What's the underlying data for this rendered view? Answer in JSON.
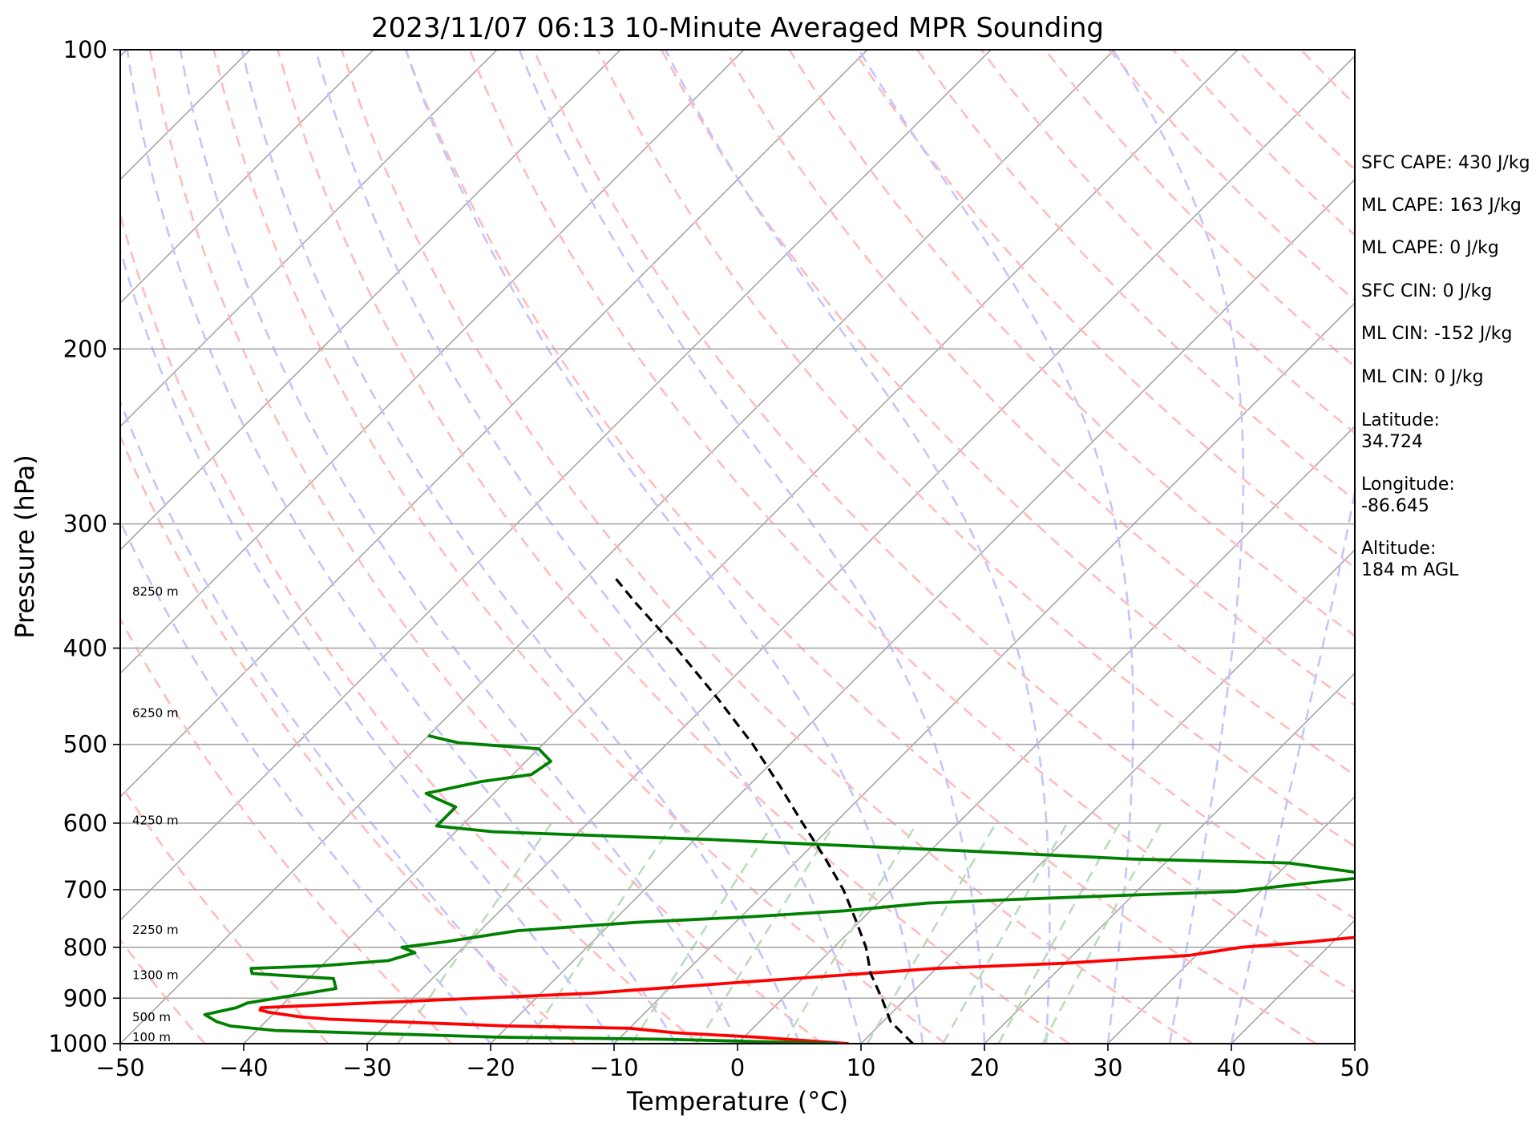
{
  "chart_data": {
    "type": "line",
    "subtype": "skew-T log-P sounding",
    "title": "2023/11/07 06:13 10-Minute Averaged MPR Sounding",
    "xlabel": "Temperature (°C)",
    "ylabel": "Pressure (hPa)",
    "xlim": [
      -50,
      50
    ],
    "ylim": [
      1000,
      100
    ],
    "y_scale": "log",
    "x_ticks": [
      -50,
      -40,
      -30,
      -20,
      -10,
      0,
      10,
      20,
      30,
      40,
      50
    ],
    "x_tick_labels": [
      "−50",
      "−40",
      "−30",
      "−20",
      "−10",
      "0",
      "10",
      "20",
      "30",
      "40",
      "50"
    ],
    "y_ticks": [
      1000,
      900,
      800,
      700,
      600,
      500,
      400,
      300,
      200,
      100
    ],
    "y_tick_labels": [
      "1000",
      "900",
      "800",
      "700",
      "600",
      "500",
      "400",
      "300",
      "200",
      "100"
    ],
    "grid": true,
    "series": [
      {
        "role": "temperature",
        "color": "#ff0000",
        "points": [
          [
            1000,
            9.0
          ],
          [
            985,
            1.0
          ],
          [
            975,
            -6.0
          ],
          [
            965,
            -10.0
          ],
          [
            960,
            -20.0
          ],
          [
            955,
            -25.0
          ],
          [
            950,
            -30.0
          ],
          [
            945,
            -35.0
          ],
          [
            940,
            -37.5
          ],
          [
            930,
            -40.5
          ],
          [
            925,
            -41.4
          ],
          [
            920,
            -41.5
          ],
          [
            910,
            -33.0
          ],
          [
            890,
            -16.0
          ],
          [
            870,
            -6.0
          ],
          [
            855,
            2.0
          ],
          [
            840,
            10.0
          ],
          [
            830,
            20.0
          ],
          [
            815,
            29.5
          ],
          [
            800,
            33.0
          ],
          [
            790,
            38.0
          ],
          [
            782,
            41.3
          ],
          [
            775,
            42.6
          ],
          [
            760,
            44.5
          ],
          [
            745,
            47.0
          ],
          [
            730,
            50.0
          ]
        ]
      },
      {
        "role": "dewpoint",
        "color": "#008000",
        "points": [
          [
            1000,
            8.0
          ],
          [
            990,
            -6.0
          ],
          [
            985,
            -20.0
          ],
          [
            980,
            -26.0
          ],
          [
            970,
            -38.5
          ],
          [
            960,
            -42.5
          ],
          [
            950,
            -44.0
          ],
          [
            935,
            -45.5
          ],
          [
            920,
            -43.5
          ],
          [
            910,
            -43.0
          ],
          [
            900,
            -41.0
          ],
          [
            880,
            -37.0
          ],
          [
            860,
            -38.0
          ],
          [
            850,
            -45.0
          ],
          [
            840,
            -45.5
          ],
          [
            835,
            -40.0
          ],
          [
            825,
            -35.0
          ],
          [
            810,
            -33.5
          ],
          [
            800,
            -35.0
          ],
          [
            790,
            -32.0
          ],
          [
            770,
            -27.0
          ],
          [
            755,
            -18.0
          ],
          [
            745,
            -9.0
          ],
          [
            735,
            -2.0
          ],
          [
            722,
            4.0
          ],
          [
            715,
            12.0
          ],
          [
            708,
            21.0
          ],
          [
            703,
            28.0
          ],
          [
            690,
            33.0
          ],
          [
            680,
            37.5
          ],
          [
            672,
            36.0
          ],
          [
            665,
            33.0
          ],
          [
            658,
            30.0
          ],
          [
            652,
            17.0
          ],
          [
            640,
            3.0
          ],
          [
            630,
            -10.0
          ],
          [
            623,
            -19.0
          ],
          [
            617,
            -29.0
          ],
          [
            612,
            -37.0
          ],
          [
            604,
            -42.0
          ],
          [
            596,
            -42.0
          ],
          [
            578,
            -42.0
          ],
          [
            568,
            -44.0
          ],
          [
            560,
            -45.5
          ],
          [
            545,
            -42.0
          ],
          [
            536,
            -38.5
          ],
          [
            520,
            -38.0
          ],
          [
            505,
            -40.0
          ],
          [
            498,
            -47.0
          ],
          [
            490,
            -50.0
          ]
        ]
      },
      {
        "role": "parcel",
        "color": "#000000",
        "dashed": true,
        "points": [
          [
            1000,
            14.2
          ],
          [
            950,
            10.6
          ],
          [
            900,
            8.0
          ],
          [
            850,
            5.1
          ],
          [
            800,
            2.6
          ],
          [
            750,
            -0.5
          ],
          [
            700,
            -3.9
          ],
          [
            650,
            -8.0
          ],
          [
            600,
            -12.6
          ],
          [
            550,
            -17.5
          ],
          [
            500,
            -23.0
          ],
          [
            450,
            -29.5
          ],
          [
            400,
            -37.0
          ],
          [
            360,
            -44.0
          ],
          [
            338,
            -48.0
          ]
        ]
      }
    ],
    "height_labels": [
      {
        "pressure": 1000,
        "text": "100 m"
      },
      {
        "pressure": 955,
        "text": "500 m"
      },
      {
        "pressure": 866,
        "text": "1300 m"
      },
      {
        "pressure": 780,
        "text": "2250 m"
      },
      {
        "pressure": 605,
        "text": "4250 m"
      },
      {
        "pressure": 472,
        "text": "6250 m"
      },
      {
        "pressure": 356,
        "text": "8250 m"
      }
    ],
    "background_lines": {
      "isotherms": {
        "color": "#a6a6a6",
        "style": "solid"
      },
      "dry_adiabats": {
        "color": "#ffbcbc",
        "style": "dashed"
      },
      "moist_adiabats": {
        "color": "#c4c4ff",
        "style": "dashed"
      },
      "mixing_ratio": {
        "color": "#b9ddb9",
        "style": "dashed"
      }
    }
  },
  "info_panel": {
    "sfc_cape": "SFC CAPE: 430 J/kg",
    "ml_cape_1": "ML CAPE: 163 J/kg",
    "ml_cape_2": "ML CAPE: 0 J/kg",
    "sfc_cin": "SFC CIN: 0 J/kg",
    "ml_cin_1": "ML CIN: -152 J/kg",
    "ml_cin_2": "ML CIN: 0 J/kg",
    "latitude_label": "Latitude:",
    "latitude_value": "34.724",
    "longitude_label": "Longitude:",
    "longitude_value": "-86.645",
    "altitude_label": "Altitude:",
    "altitude_value": "184 m AGL"
  }
}
